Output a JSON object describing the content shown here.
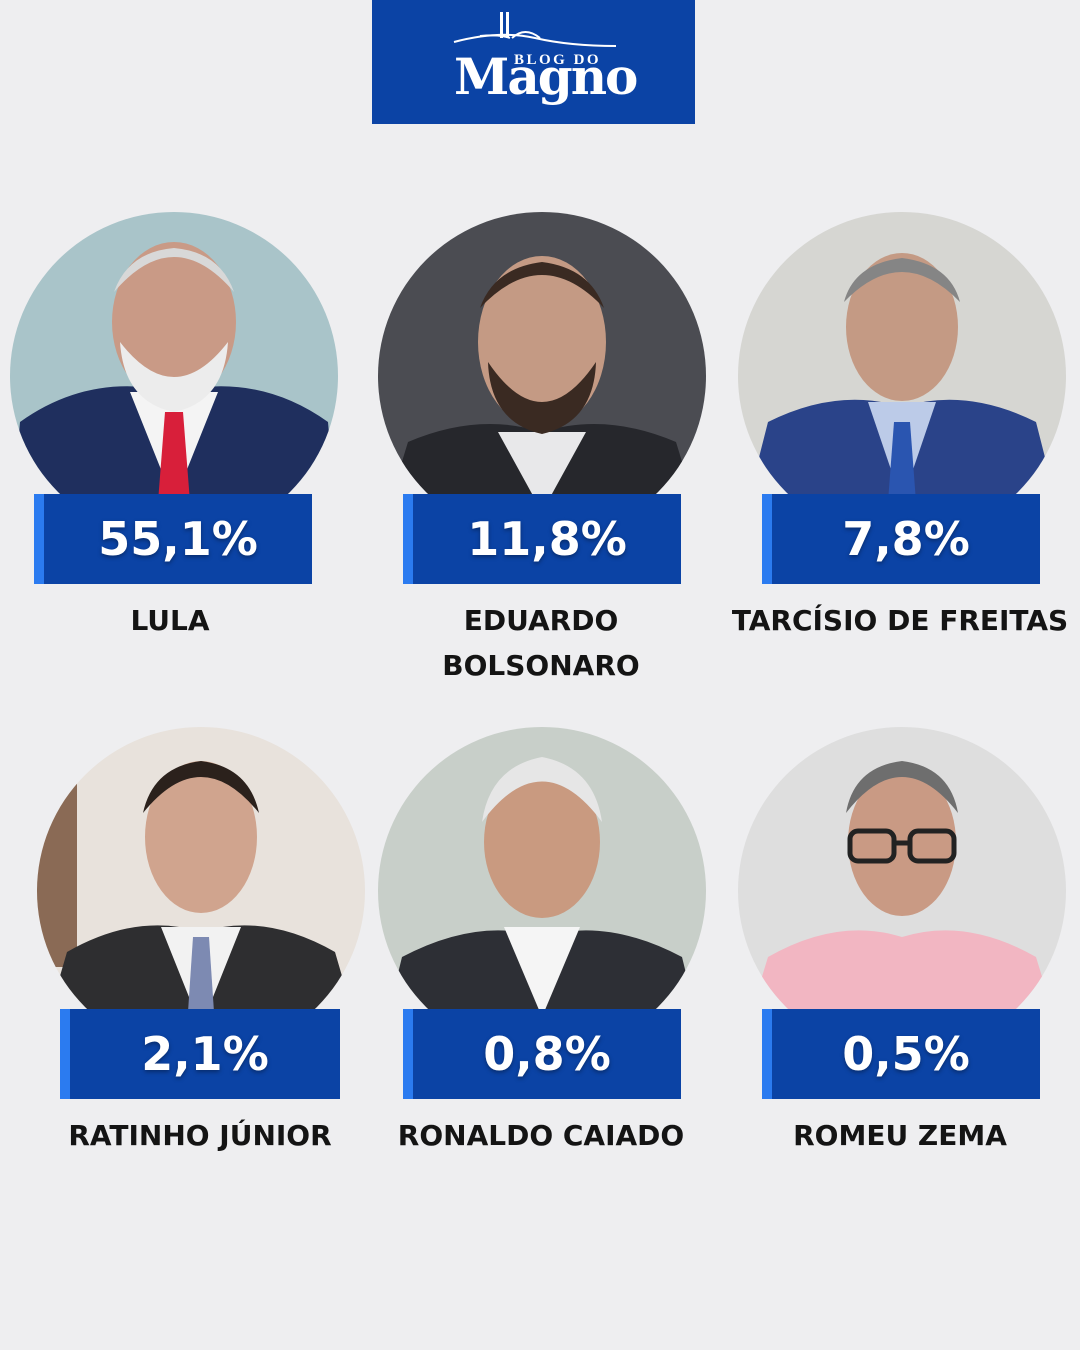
{
  "logo": {
    "small_text": "BLOG DO",
    "big_text": "Magno",
    "bg_color": "#0b43a5"
  },
  "colors": {
    "background": "#eeeef0",
    "box": "#0b43a5",
    "box_accent": "#2b7bf0"
  },
  "candidates": [
    {
      "percent": "55,1%",
      "name": "LULA"
    },
    {
      "percent": "11,8%",
      "name": "EDUARDO BOLSONARO"
    },
    {
      "percent": "7,8%",
      "name": "TARCÍSIO DE FREITAS"
    },
    {
      "percent": "2,1%",
      "name": "RATINHO JÚNIOR"
    },
    {
      "percent": "0,8%",
      "name": "RONALDO CAIADO"
    },
    {
      "percent": "0,5%",
      "name": "ROMEU ZEMA"
    }
  ]
}
